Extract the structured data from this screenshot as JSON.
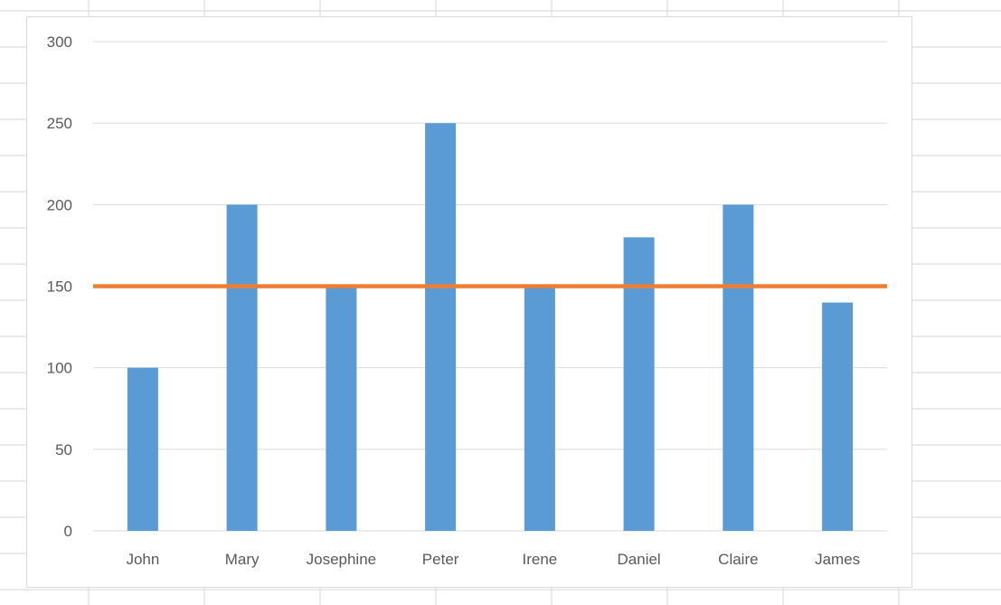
{
  "colors": {
    "bar": "#5b9bd5",
    "line": "#ed7d31",
    "gridline": "#d9d9d9",
    "sheet_gridline": "#d4d4d4",
    "text": "#595959"
  },
  "chart_data": {
    "type": "bar",
    "categories": [
      "John",
      "Mary",
      "Josephine",
      "Peter",
      "Irene",
      "Daniel",
      "Claire",
      "James"
    ],
    "series": [
      {
        "type": "bar",
        "values": [
          100,
          200,
          150,
          250,
          150,
          180,
          200,
          140
        ]
      },
      {
        "type": "line",
        "values": [
          150,
          150,
          150,
          150,
          150,
          150,
          150,
          150
        ]
      }
    ],
    "ylim": [
      0,
      300
    ],
    "yticks": [
      0,
      50,
      100,
      150,
      200,
      250,
      300
    ],
    "ytick_labels": [
      "0",
      "50",
      "100",
      "150",
      "200",
      "250",
      "300"
    ],
    "grid": true,
    "legend": "none",
    "title": "",
    "xlabel": "",
    "ylabel": ""
  }
}
